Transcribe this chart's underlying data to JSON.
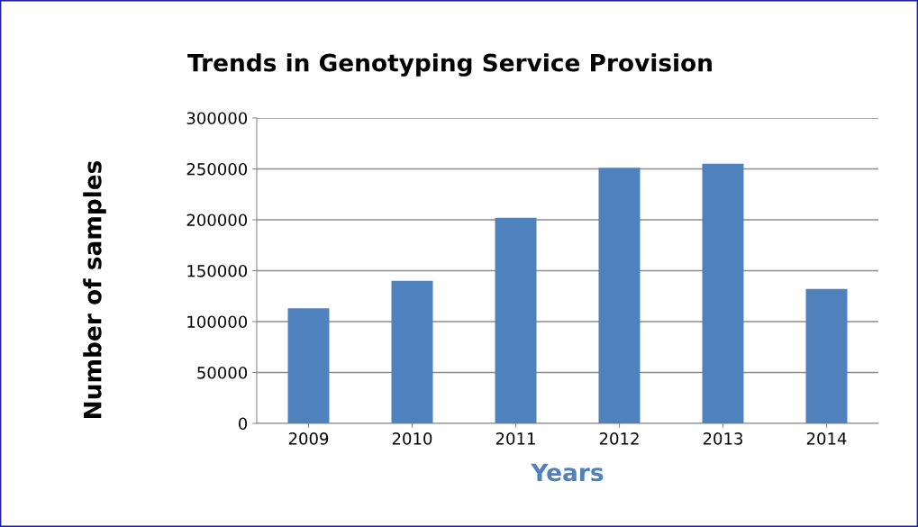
{
  "chart_data": {
    "type": "bar",
    "title": "Trends in Genotyping Service Provision",
    "xlabel": "Years",
    "ylabel": "Number of samples",
    "categories": [
      "2009",
      "2010",
      "2011",
      "2012",
      "2013",
      "2014"
    ],
    "values": [
      113000,
      140000,
      202000,
      251000,
      255000,
      132000
    ],
    "color": "#4f81bd",
    "ylim": [
      0,
      300000
    ],
    "yticks": [
      0,
      50000,
      100000,
      150000,
      200000,
      250000,
      300000
    ],
    "grid": "y"
  }
}
